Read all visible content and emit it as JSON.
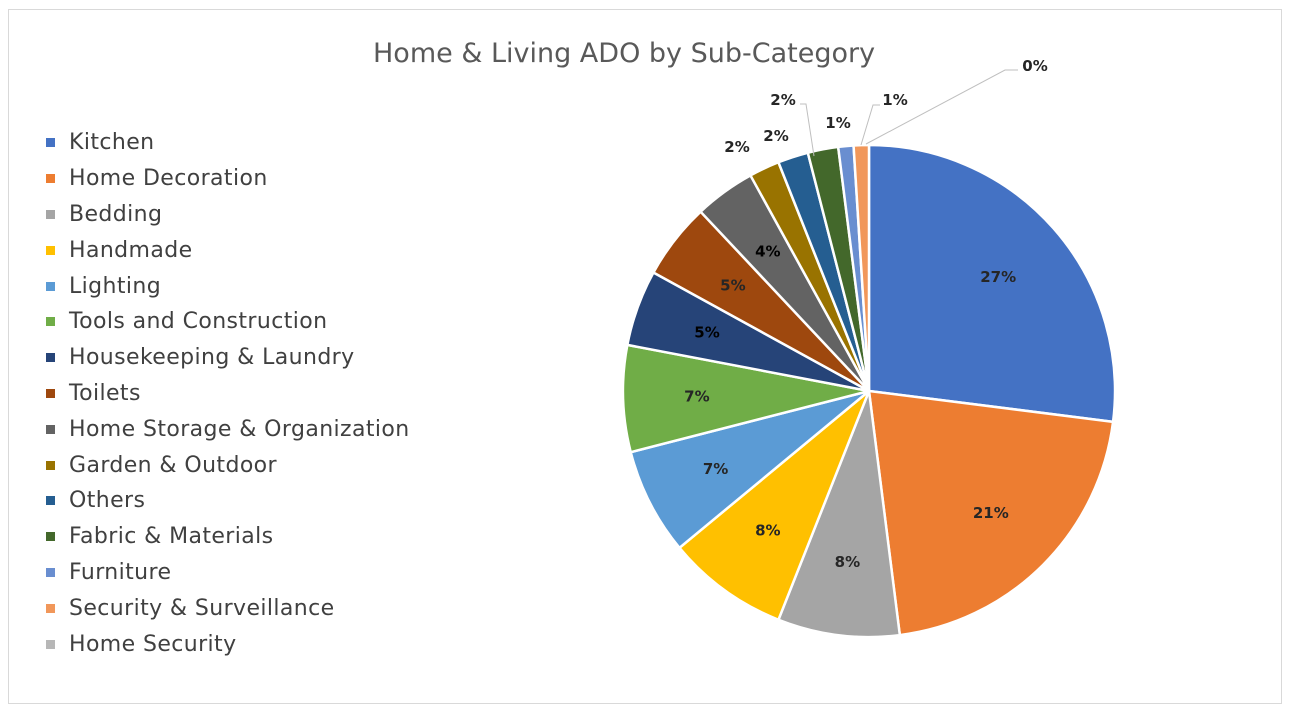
{
  "chart_data": {
    "type": "pie",
    "title": "Home & Living ADO by Sub-Category",
    "categories": [
      "Kitchen",
      "Home Decoration",
      "Bedding",
      "Handmade",
      "Lighting",
      "Tools and Construction",
      "Housekeeping & Laundry",
      "Toilets",
      "Home Storage & Organization",
      "Garden & Outdoor",
      "Others",
      "Fabric & Materials",
      "Furniture",
      "Security & Surveillance",
      "Home Security"
    ],
    "values": [
      27,
      21,
      8,
      8,
      7,
      7,
      5,
      5,
      4,
      2,
      2,
      2,
      1,
      1,
      0
    ],
    "data_labels": [
      "27%",
      "21%",
      "8%",
      "8%",
      "7%",
      "7%",
      "5%",
      "5%",
      "4%",
      "2%",
      "2%",
      "2%",
      "1%",
      "1%",
      "0%"
    ],
    "colors": [
      "#4472C4",
      "#ED7D31",
      "#A5A5A5",
      "#FFC000",
      "#5B9BD5",
      "#70AD47",
      "#264478",
      "#9E480E",
      "#636363",
      "#997300",
      "#255E91",
      "#43682B",
      "#698ED0",
      "#F1975A",
      "#B7B7B7"
    ],
    "legend_position": "left",
    "start_angle": "12 o'clock, clockwise"
  }
}
